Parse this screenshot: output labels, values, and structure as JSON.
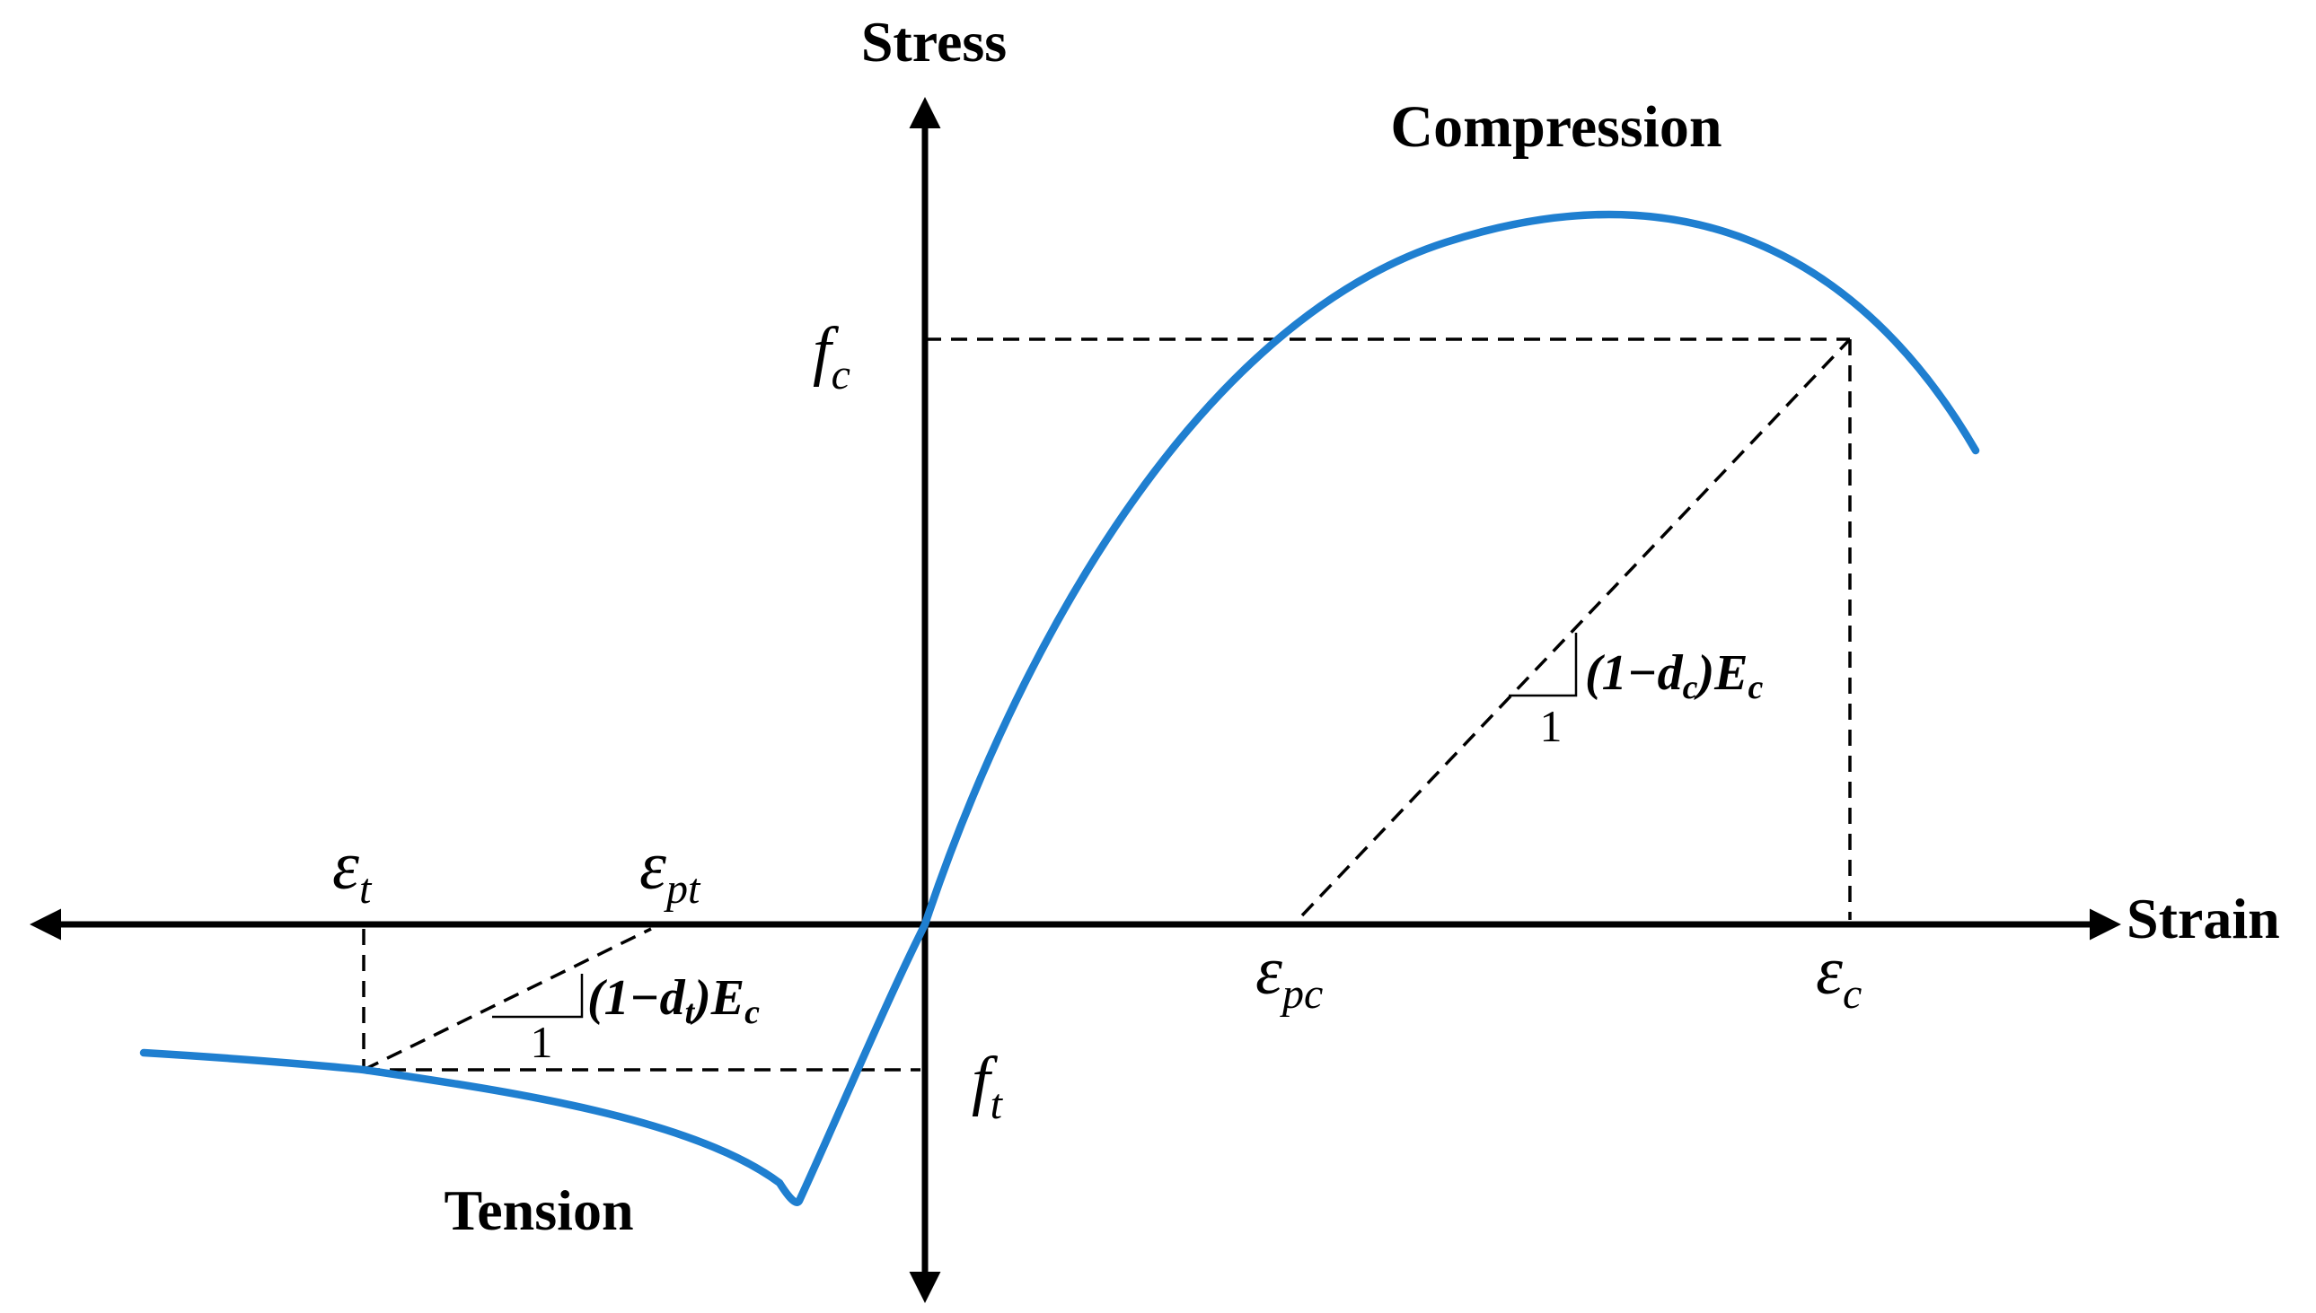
{
  "axes": {
    "y_label": "Stress",
    "x_label": "Strain"
  },
  "regions": {
    "compression": "Compression",
    "tension": "Tension"
  },
  "symbols": {
    "fc": {
      "base": "f",
      "sub": "c"
    },
    "ft": {
      "base": "f",
      "sub": "t"
    },
    "eps_t": {
      "base": "ε",
      "sub": "t"
    },
    "eps_pt": {
      "base": "ε",
      "sub": "pt"
    },
    "eps_pc": {
      "base": "ε",
      "sub": "pc"
    },
    "eps_c": {
      "base": "ε",
      "sub": "c"
    }
  },
  "slopes": {
    "compression": {
      "open": "(1−d",
      "sub": "c",
      "close": ")E",
      "sub2": "c",
      "unit": "1"
    },
    "tension": {
      "open": "(1−d",
      "sub": "t",
      "close": ")E",
      "sub2": "c",
      "unit": "1"
    }
  },
  "colors": {
    "curve": "#1f7fd0",
    "axes": "#000000"
  }
}
